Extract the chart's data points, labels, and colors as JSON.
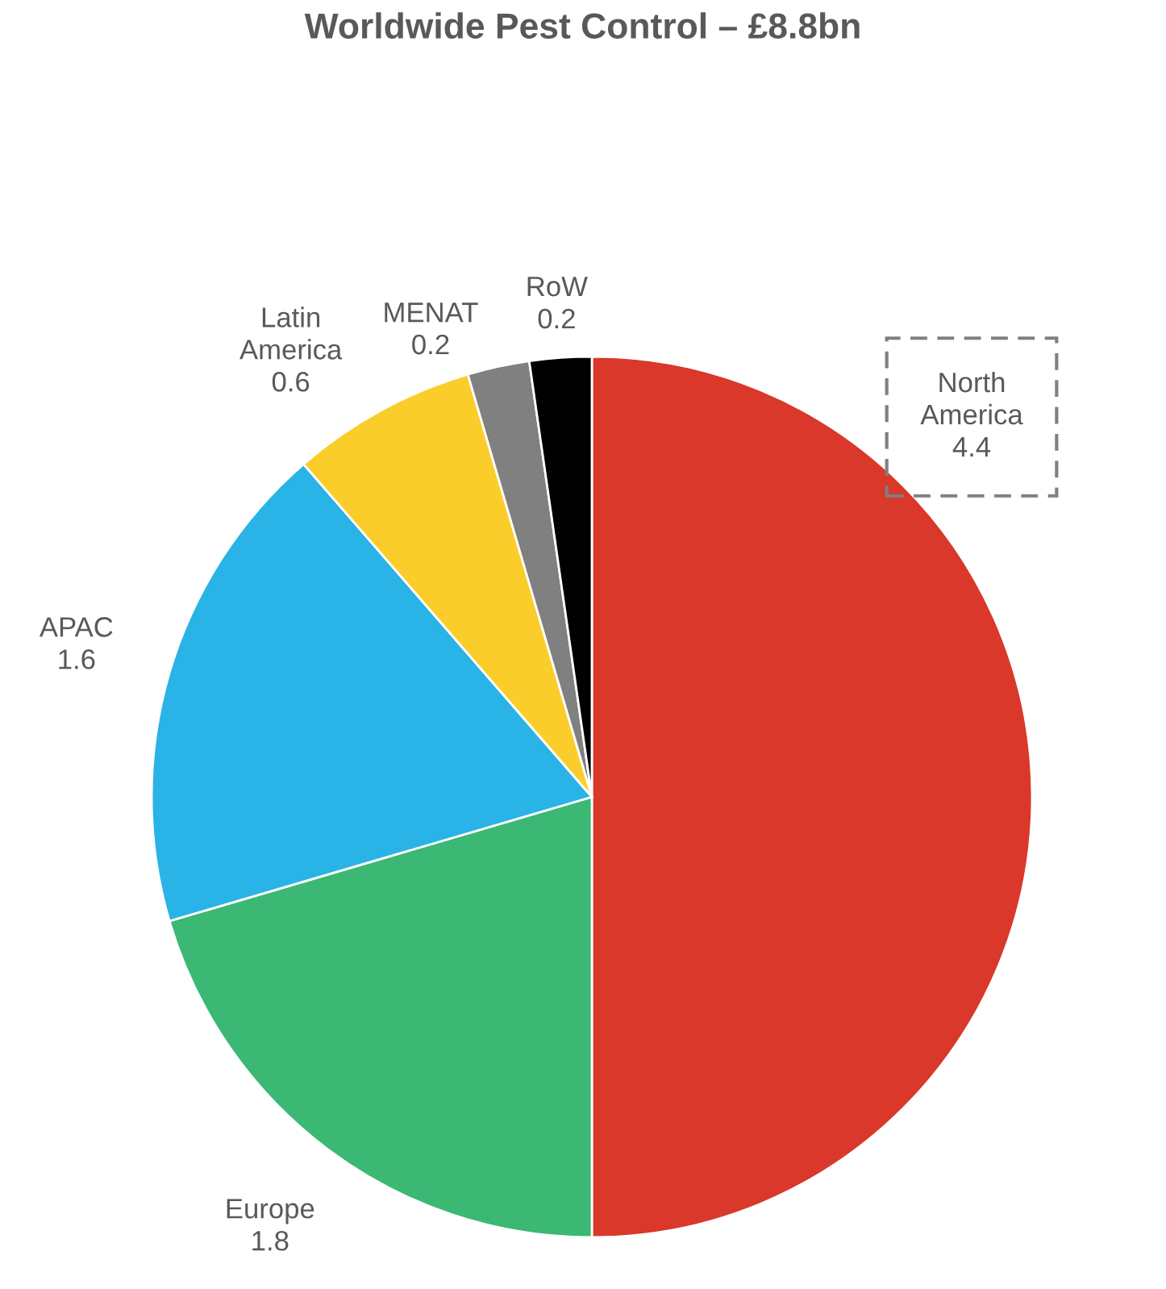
{
  "chart_data": {
    "type": "pie",
    "title": "Worldwide Pest Control – £8.8bn",
    "categories": [
      "North America",
      "Europe",
      "APAC",
      "Latin America",
      "MENAT",
      "RoW"
    ],
    "values": [
      4.4,
      1.8,
      1.6,
      0.6,
      0.2,
      0.2
    ],
    "colors": [
      "#d9382a",
      "#3bb873",
      "#29b3e6",
      "#fbcd2a",
      "#808080",
      "#000000"
    ],
    "data_labels": true,
    "legend": false
  }
}
